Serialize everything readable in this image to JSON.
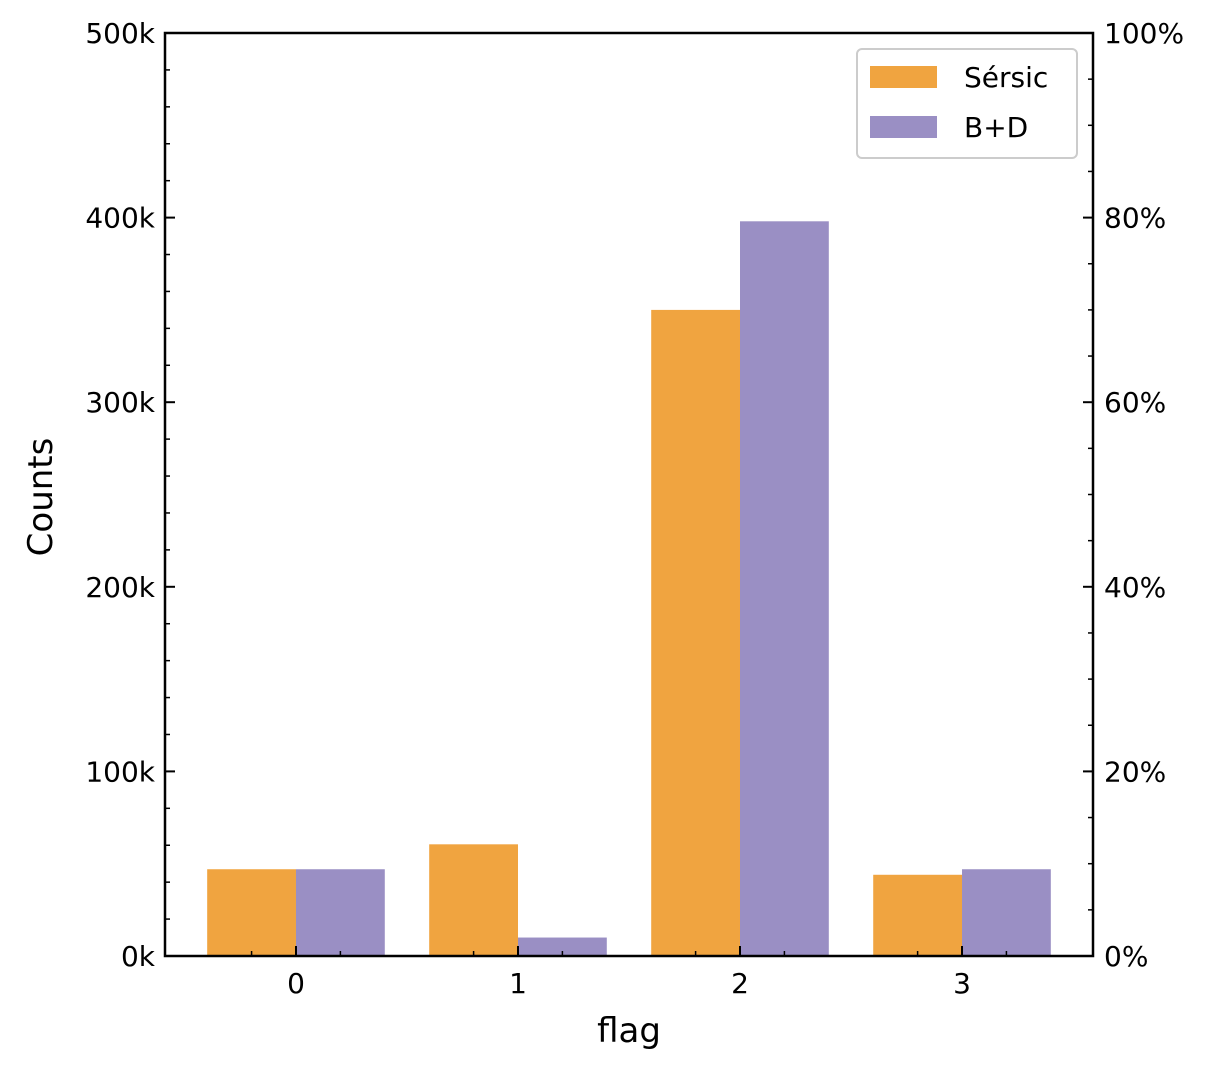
{
  "chart_data": {
    "type": "bar",
    "xlabel": "flag",
    "ylabel": "Counts",
    "categories": [
      "0",
      "1",
      "2",
      "3"
    ],
    "series": [
      {
        "name": "Sérsic",
        "color": "#f0a440",
        "values": [
          47000,
          60500,
          350000,
          44000
        ]
      },
      {
        "name": "B+D",
        "color": "#9a8fc4",
        "values": [
          47000,
          10000,
          398000,
          47000
        ]
      }
    ],
    "ylim": [
      0,
      500000
    ],
    "y_ticks": [
      0,
      100000,
      200000,
      300000,
      400000,
      500000
    ],
    "y_tick_labels": [
      "0k",
      "100k",
      "200k",
      "300k",
      "400k",
      "500k"
    ],
    "right_axis": {
      "ylim": [
        0,
        100
      ],
      "ticks": [
        0,
        20,
        40,
        60,
        80,
        100
      ],
      "tick_labels": [
        "0%",
        "20%",
        "40%",
        "60%",
        "80%",
        "100%"
      ]
    },
    "legend": {
      "placement": "top-right"
    },
    "grid": false
  }
}
